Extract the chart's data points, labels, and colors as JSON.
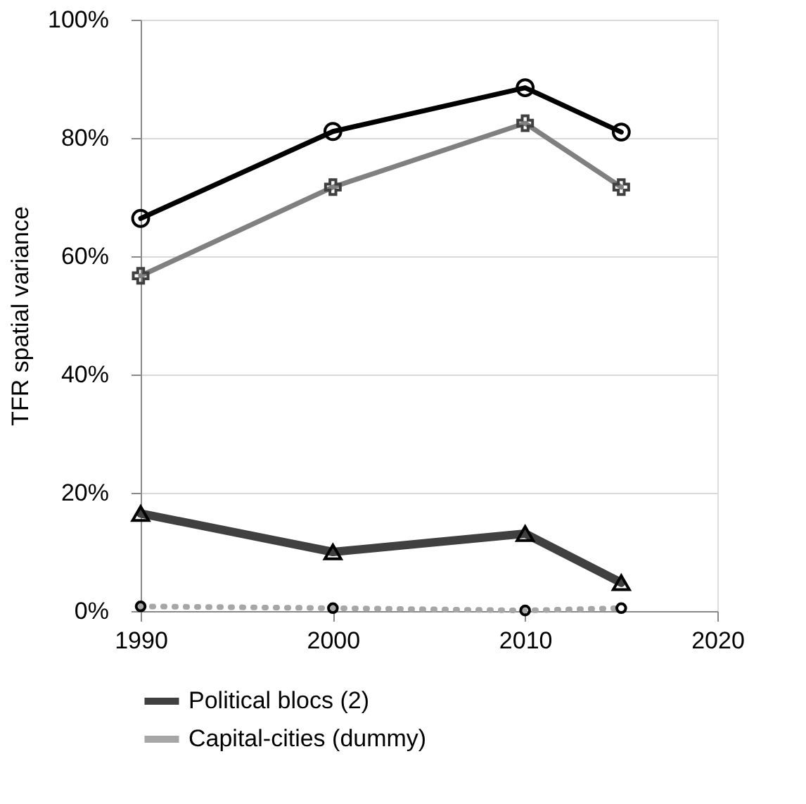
{
  "chart_data": {
    "type": "line",
    "ylabel": "TFR spatial variance",
    "x": [
      1990,
      2000,
      2010,
      2015
    ],
    "series": [
      {
        "color": "#000000",
        "marker": "circle",
        "line_style": "solid",
        "values": [
          66.4,
          81.1,
          88.5,
          81.0
        ]
      },
      {
        "color": "#808080",
        "marker": "cross",
        "line_style": "solid",
        "values": [
          56.7,
          71.7,
          82.5,
          71.7
        ]
      },
      {
        "name": "Political blocs (2)",
        "color": "#404040",
        "marker": "triangle",
        "line_style": "solid",
        "values": [
          16.5,
          10.0,
          13.1,
          4.8
        ]
      },
      {
        "name": "Capital-cities (dummy)",
        "color": "#a6a6a6",
        "marker": "circle",
        "line_style": "dotted",
        "values": [
          0.8,
          0.5,
          0.1,
          0.5
        ]
      }
    ],
    "xlim": [
      1990,
      2020
    ],
    "xticks": [
      1990,
      2000,
      2010,
      2020
    ],
    "ylim": [
      0,
      100
    ],
    "yticks": [
      {
        "value": 0,
        "label": "0%"
      },
      {
        "value": 20,
        "label": "20%"
      },
      {
        "value": 40,
        "label": "40%"
      },
      {
        "value": 60,
        "label": "60%"
      },
      {
        "value": 80,
        "label": "80%"
      },
      {
        "value": 100,
        "label": "100%"
      }
    ],
    "grid": "y",
    "legend": "bottom"
  }
}
